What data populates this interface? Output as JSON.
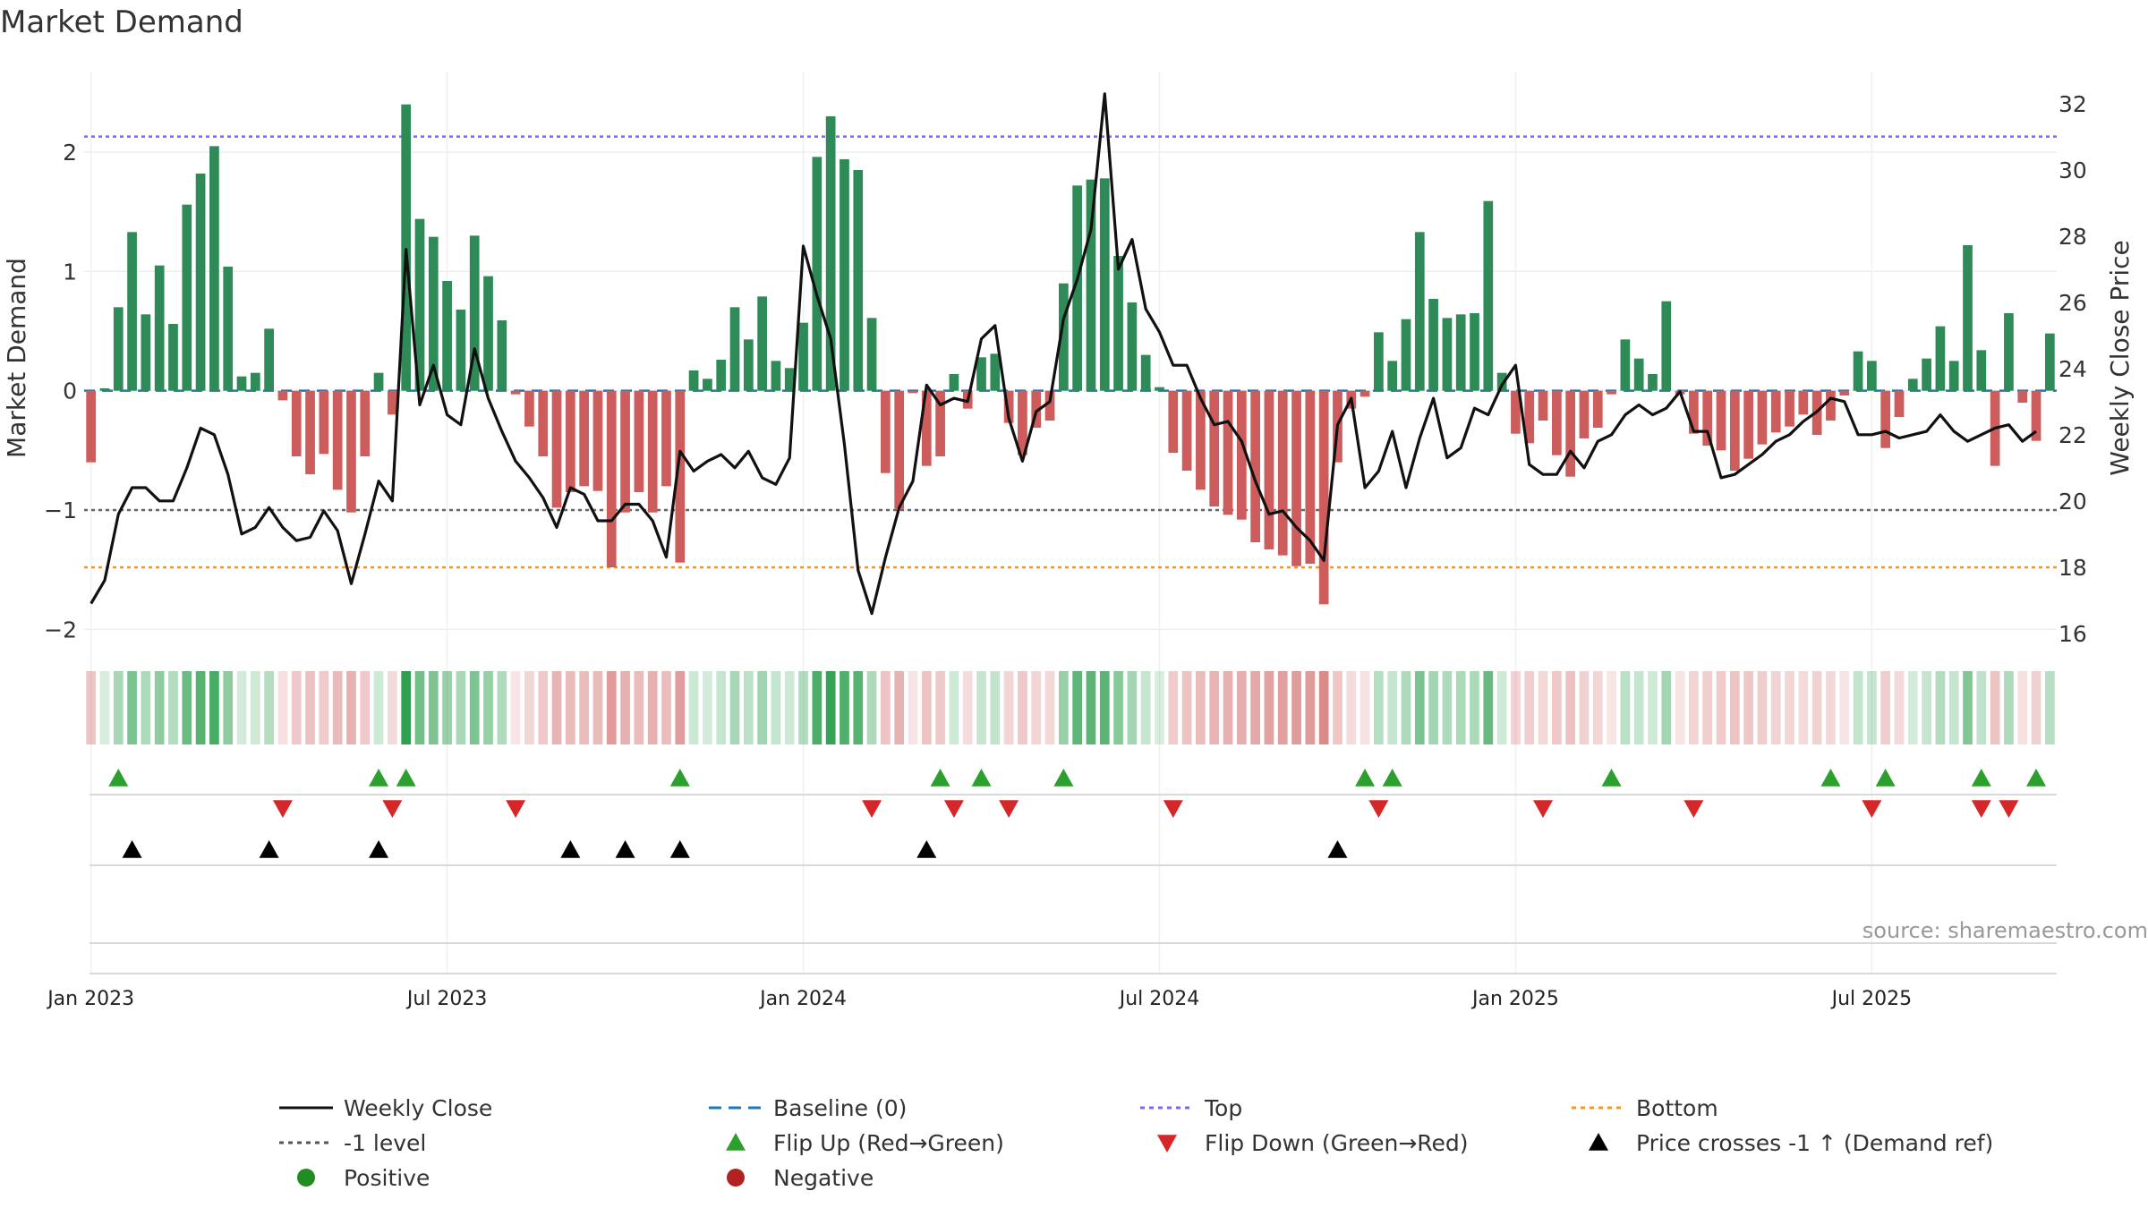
{
  "chart_data": {
    "type": "bar",
    "title": "Market Demand",
    "ylabel": "Market Demand",
    "y2label": "Weekly Close Price",
    "ylim": [
      -2.2,
      2.6
    ],
    "y2lim": [
      15.4,
      32.7
    ],
    "yticks": [
      -2,
      -1,
      0,
      1,
      2
    ],
    "yticklabels": [
      "−2",
      "−1",
      "0",
      "1",
      "2"
    ],
    "y2ticks": [
      16,
      18,
      20,
      22,
      24,
      26,
      28,
      30,
      32
    ],
    "xticks": [
      {
        "label": "Jan 2023",
        "week": 0
      },
      {
        "label": "Jul 2023",
        "week": 26
      },
      {
        "label": "Jan 2024",
        "week": 52
      },
      {
        "label": "Jul 2024",
        "week": 78
      },
      {
        "label": "Jan 2025",
        "week": 104
      },
      {
        "label": "Jul 2025",
        "week": 130
      }
    ],
    "reference_lines": {
      "top": 2.13,
      "bottom": -1.48,
      "minus_one": -1,
      "baseline": 0
    },
    "demand": [
      -0.6,
      0.02,
      0.7,
      1.33,
      0.64,
      1.05,
      0.56,
      1.56,
      1.82,
      2.05,
      1.04,
      0.12,
      0.15,
      0.52,
      -0.08,
      -0.55,
      -0.7,
      -0.53,
      -0.83,
      -1.02,
      -0.55,
      0.15,
      -0.2,
      2.4,
      1.44,
      1.29,
      0.92,
      0.68,
      1.3,
      0.96,
      0.59,
      -0.03,
      -0.3,
      -0.55,
      -0.98,
      -0.85,
      -0.8,
      -0.84,
      -1.48,
      -1.02,
      -0.85,
      -1.02,
      -0.8,
      -1.44,
      0.17,
      0.1,
      0.26,
      0.7,
      0.43,
      0.79,
      0.25,
      0.19,
      0.57,
      1.96,
      2.3,
      1.94,
      1.85,
      0.61,
      -0.69,
      -0.99,
      -0.02,
      -0.63,
      -0.55,
      0.14,
      -0.15,
      0.28,
      0.31,
      -0.27,
      -0.54,
      -0.31,
      -0.25,
      0.9,
      1.72,
      1.77,
      1.78,
      1.13,
      0.74,
      0.3,
      0.03,
      -0.52,
      -0.67,
      -0.83,
      -0.97,
      -1.04,
      -1.08,
      -1.27,
      -1.33,
      -1.38,
      -1.47,
      -1.45,
      -1.79,
      -0.6,
      -0.15,
      -0.05,
      0.49,
      0.25,
      0.6,
      1.33,
      0.77,
      0.61,
      0.64,
      0.65,
      1.59,
      0.15,
      -0.36,
      -0.44,
      -0.25,
      -0.54,
      -0.72,
      -0.4,
      -0.31,
      -0.03,
      0.43,
      0.27,
      0.14,
      0.75,
      -0.03,
      -0.36,
      -0.46,
      -0.5,
      -0.67,
      -0.57,
      -0.45,
      -0.35,
      -0.3,
      -0.2,
      -0.37,
      -0.25,
      -0.04,
      0.33,
      0.25,
      -0.48,
      -0.22,
      0.1,
      0.27,
      0.54,
      0.25,
      1.22,
      0.34,
      -0.63,
      0.65,
      -0.1,
      -0.42,
      0.48
    ],
    "weekly_close": [
      16.9,
      17.6,
      19.6,
      20.4,
      20.4,
      20.0,
      20.0,
      21.0,
      22.2,
      22.0,
      20.8,
      19.0,
      19.2,
      19.8,
      19.2,
      18.8,
      18.9,
      19.7,
      19.1,
      17.5,
      19.0,
      20.6,
      20.0,
      27.6,
      22.9,
      24.1,
      22.6,
      22.3,
      24.6,
      23.1,
      22.1,
      21.2,
      20.7,
      20.1,
      19.2,
      20.4,
      20.2,
      19.4,
      19.4,
      19.9,
      19.9,
      19.4,
      18.3,
      21.5,
      20.9,
      21.2,
      21.4,
      21.0,
      21.5,
      20.7,
      20.5,
      21.3,
      27.7,
      26.2,
      24.9,
      21.7,
      17.9,
      16.6,
      18.3,
      19.8,
      20.6,
      23.5,
      22.9,
      23.1,
      23.0,
      24.9,
      25.3,
      22.5,
      21.2,
      22.7,
      23.0,
      25.5,
      26.7,
      28.2,
      32.3,
      27.0,
      27.9,
      25.8,
      25.1,
      24.1,
      24.1,
      23.1,
      22.3,
      22.4,
      21.8,
      20.6,
      19.6,
      19.7,
      19.2,
      18.8,
      18.2,
      22.3,
      23.1,
      20.4,
      20.9,
      22.1,
      20.4,
      21.9,
      23.1,
      21.3,
      21.6,
      22.8,
      22.6,
      23.5,
      24.1,
      21.1,
      20.8,
      20.8,
      21.5,
      21.0,
      21.8,
      22.0,
      22.6,
      22.9,
      22.6,
      22.8,
      23.3,
      22.1,
      22.1,
      20.7,
      20.8,
      21.1,
      21.4,
      21.8,
      22.0,
      22.4,
      22.7,
      23.1,
      23.0,
      22.0,
      22.0,
      22.1,
      21.9,
      22.0,
      22.1,
      22.6,
      22.1,
      21.8,
      22.0,
      22.2,
      22.3,
      21.8,
      22.1
    ],
    "flip_up_weeks": [
      2,
      21,
      23,
      43,
      62,
      65,
      71,
      93,
      95,
      111,
      127,
      131,
      138,
      142
    ],
    "flip_down_weeks": [
      14,
      22,
      31,
      57,
      63,
      67,
      79,
      94,
      106,
      117,
      130,
      138,
      140
    ],
    "price_cross_weeks": [
      3,
      13,
      21,
      35,
      39,
      43,
      61,
      91
    ],
    "legend": [
      {
        "label": "Weekly Close",
        "kind": "line",
        "color": "#111111"
      },
      {
        "label": "Baseline (0)",
        "kind": "dashed",
        "color": "#1f77b4"
      },
      {
        "label": "Top",
        "kind": "dotted",
        "color": "#7b68ee"
      },
      {
        "label": "Bottom",
        "kind": "dotted",
        "color": "#f0962a"
      },
      {
        "label": "-1 level",
        "kind": "dotted",
        "color": "#555555"
      },
      {
        "label": "Flip Up (Red→Green)",
        "kind": "tri-up",
        "color": "#2ca02c"
      },
      {
        "label": "Flip Down (Green→Red)",
        "kind": "tri-down",
        "color": "#d62728"
      },
      {
        "label": "Price crosses -1 ↑ (Demand ref)",
        "kind": "tri-up",
        "color": "#000000"
      },
      {
        "label": "Positive",
        "kind": "dot",
        "color": "#228b22"
      },
      {
        "label": "Negative",
        "kind": "dot",
        "color": "#b22222"
      }
    ],
    "source": "source: sharemaestro.com",
    "colors": {
      "positive": "#2e8b57",
      "negative": "#cd5c5c"
    }
  }
}
